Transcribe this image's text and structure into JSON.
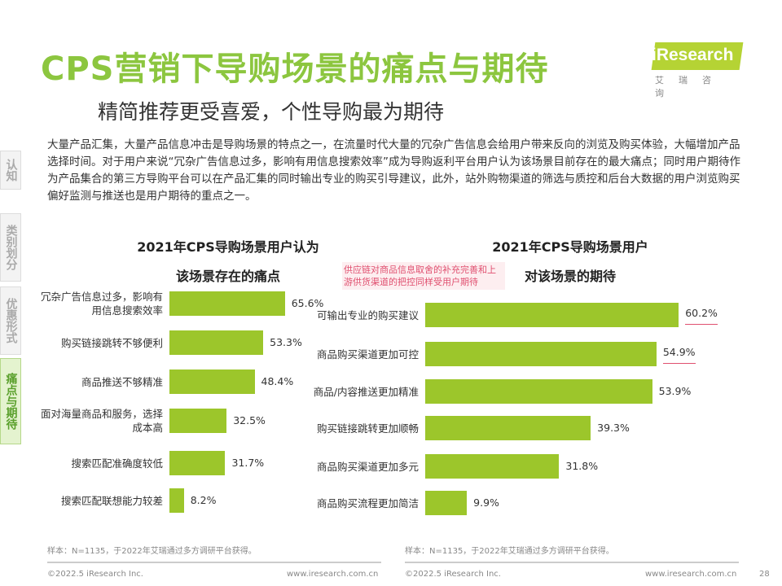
{
  "header": {
    "title": "CPS营销下导购场景的痛点与期待",
    "subtitle": "精简推荐更受喜爱，个性导购最为期待",
    "logo_text": "iResearch",
    "logo_cn": "艾瑞咨询"
  },
  "paragraph": "大量产品汇集，大量产品信息冲击是导购场景的特点之一，在流量时代大量的冗杂广告信息会给用户带来反向的浏览及购买体验，大幅增加产品选择时间。对于用户来说“冗杂广告信息过多，影响有用信息搜索效率”成为导购返利平台用户认为该场景目前存在的最大痛点；同时用户期待作为产品集合的第三方导购平台可以在产品汇集的同时输出专业的购买引导建议，此外，站外购物渠道的筛选与质控和后台大数据的用户浏览购买偏好监测与推送也是用户期待的重点之一。",
  "side_nav": [
    {
      "label": "认知"
    },
    {
      "label": "类别划分"
    },
    {
      "label": "优惠形式"
    },
    {
      "label": "痛点与期待",
      "active": true
    }
  ],
  "annotation": "供应链对商品信息取舍的补充完善和上游供货渠道的把控同样受用户期待",
  "colors": {
    "accent": "#8cc63f",
    "bar": "#9cc62b",
    "highlight": "#e05070"
  },
  "chart_data": [
    {
      "type": "bar",
      "orientation": "horizontal",
      "title": "2021年CPS导购场景用户认为\n该场景存在的痛点",
      "title_lines": [
        "2021年CPS导购场景用户认为",
        "该场景存在的痛点"
      ],
      "categories": [
        "冗杂广告信息过多，影响有用信息搜索效率",
        "购买链接跳转不够便利",
        "商品推送不够精准",
        "面对海量商品和服务，选择成本高",
        "搜索匹配准确度较低",
        "搜索匹配联想能力较差"
      ],
      "values": [
        65.6,
        53.3,
        48.4,
        32.5,
        31.7,
        8.2
      ],
      "labels": [
        "65.6%",
        "53.3%",
        "48.4%",
        "32.5%",
        "31.7%",
        "8.2%"
      ],
      "unit": "%"
    },
    {
      "type": "bar",
      "orientation": "horizontal",
      "title": "2021年CPS导购场景用户\n对该场景的期待",
      "title_lines": [
        "2021年CPS导购场景用户",
        "对该场景的期待"
      ],
      "categories": [
        "可输出专业的购买建议",
        "商品购买渠道更加可控",
        "商品/内容推送更加精准",
        "购买链接跳转更加顺畅",
        "商品购买渠道更加多元",
        "商品购买流程更加简洁"
      ],
      "values": [
        60.2,
        54.9,
        53.9,
        39.3,
        31.8,
        9.9
      ],
      "labels": [
        "60.2%",
        "54.9%",
        "53.9%",
        "39.3%",
        "31.8%",
        "9.9%"
      ],
      "underlined": [
        true,
        true,
        false,
        false,
        false,
        false
      ],
      "unit": "%"
    }
  ],
  "footer": {
    "source_left": "样本：N=1135，于2022年艾瑞通过多方调研平台获得。",
    "source_right": "样本：N=1135，于2022年艾瑞通过多方调研平台获得。",
    "copyright": "©2022.5 iResearch Inc.",
    "url": "www.iresearch.com.cn",
    "page": "28"
  }
}
